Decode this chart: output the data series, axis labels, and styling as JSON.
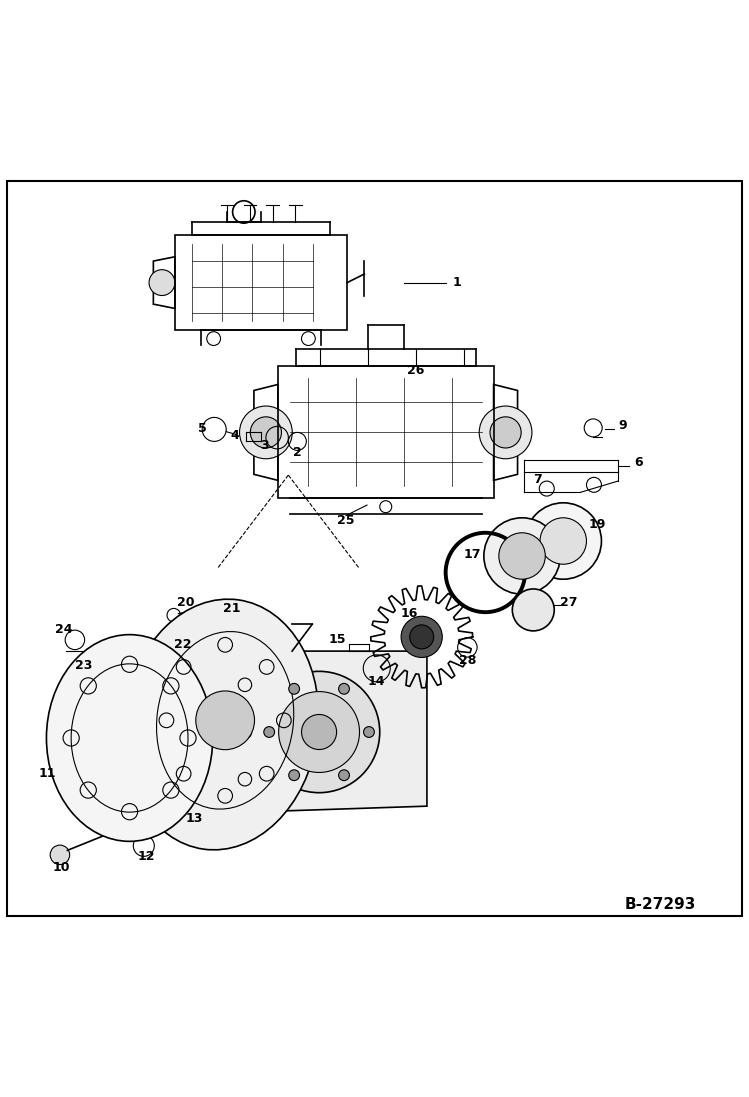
{
  "bg_color": "#ffffff",
  "border_color": "#000000",
  "line_color": "#000000",
  "text_color": "#000000",
  "fig_width": 7.49,
  "fig_height": 10.97,
  "dpi": 100,
  "watermark": "B-27293"
}
